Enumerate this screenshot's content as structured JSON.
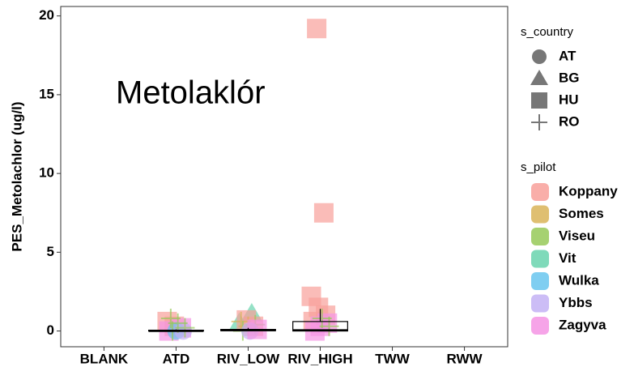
{
  "chart_data": {
    "type": "box",
    "title": "Metolaklór",
    "y_label": "PES_Metolachlor (ug/l)",
    "categories": [
      "BLANK",
      "ATD",
      "RIV_LOW",
      "RIV_HIGH",
      "TWW",
      "RWW"
    ],
    "ylim": [
      -1,
      20.6
    ],
    "yticks": [
      0,
      5,
      10,
      15,
      20
    ],
    "boxes": [
      {
        "category": "ATD",
        "min": 0,
        "q1": 0,
        "median": 0,
        "q3": 0.05,
        "max": 0.1
      },
      {
        "category": "RIV_LOW",
        "min": 0,
        "q1": 0.02,
        "median": 0.05,
        "q3": 0.1,
        "max": 0.2
      },
      {
        "category": "RIV_HIGH",
        "min": 0,
        "q1": 0,
        "median": 0.05,
        "q3": 0.6,
        "max": 1.4
      }
    ],
    "country_legend": {
      "title": "s_country",
      "names": [
        "AT",
        "BG",
        "HU",
        "RO"
      ],
      "shapes": [
        "circle",
        "triangle",
        "square",
        "plus"
      ]
    },
    "pilot_legend": {
      "title": "s_pilot",
      "names": [
        "Koppany",
        "Somes",
        "Viseu",
        "Vit",
        "Wulka",
        "Ybbs",
        "Zagyva"
      ],
      "colors": [
        "#f8a09a",
        "#d9b458",
        "#97c958",
        "#68d4ae",
        "#68c6ee",
        "#c3b1f4",
        "#f594e4"
      ]
    },
    "points": [
      {
        "category": "ATD",
        "value": 0.6,
        "pilot": "Koppany",
        "country": "HU"
      },
      {
        "category": "ATD",
        "value": 0.3,
        "pilot": "Koppany",
        "country": "HU"
      },
      {
        "category": "ATD",
        "value": 0.2,
        "pilot": "Zagyva",
        "country": "HU"
      },
      {
        "category": "ATD",
        "value": 0,
        "pilot": "Zagyva",
        "country": "HU"
      },
      {
        "category": "ATD",
        "value": 0,
        "pilot": "Wulka",
        "country": "AT"
      },
      {
        "category": "ATD",
        "value": 0,
        "pilot": "Ybbs",
        "country": "AT"
      },
      {
        "category": "ATD",
        "value": 0.8,
        "pilot": "Viseu",
        "country": "RO"
      },
      {
        "category": "ATD",
        "value": 0.5,
        "pilot": "Viseu",
        "country": "RO"
      },
      {
        "category": "ATD",
        "value": 0.2,
        "pilot": "Viseu",
        "country": "RO"
      },
      {
        "category": "ATD",
        "value": 0,
        "pilot": "Viseu",
        "country": "RO"
      },
      {
        "category": "RIV_LOW",
        "value": 1.1,
        "pilot": "Vit",
        "country": "BG"
      },
      {
        "category": "RIV_LOW",
        "value": 0.5,
        "pilot": "Vit",
        "country": "BG"
      },
      {
        "category": "RIV_LOW",
        "value": 0.7,
        "pilot": "Koppany",
        "country": "HU"
      },
      {
        "category": "RIV_LOW",
        "value": 0.3,
        "pilot": "Koppany",
        "country": "HU"
      },
      {
        "category": "RIV_LOW",
        "value": 0.6,
        "pilot": "Somes",
        "country": "RO"
      },
      {
        "category": "RIV_LOW",
        "value": 0.3,
        "pilot": "Somes",
        "country": "RO"
      },
      {
        "category": "RIV_LOW",
        "value": 0.4,
        "pilot": "Viseu",
        "country": "RO"
      },
      {
        "category": "RIV_LOW",
        "value": 0,
        "pilot": "Viseu",
        "country": "RO"
      },
      {
        "category": "RIV_LOW",
        "value": 0,
        "pilot": "Ybbs",
        "country": "AT"
      },
      {
        "category": "RIV_LOW",
        "value": 0.1,
        "pilot": "Zagyva",
        "country": "HU"
      },
      {
        "category": "RIV_HIGH",
        "value": 19.2,
        "pilot": "Koppany",
        "country": "HU"
      },
      {
        "category": "RIV_HIGH",
        "value": 7.5,
        "pilot": "Koppany",
        "country": "HU"
      },
      {
        "category": "RIV_HIGH",
        "value": 2.2,
        "pilot": "Koppany",
        "country": "HU"
      },
      {
        "category": "RIV_HIGH",
        "value": 1.5,
        "pilot": "Koppany",
        "country": "HU"
      },
      {
        "category": "RIV_HIGH",
        "value": 1,
        "pilot": "Koppany",
        "country": "HU"
      },
      {
        "category": "RIV_HIGH",
        "value": 0.6,
        "pilot": "Koppany",
        "country": "HU"
      },
      {
        "category": "RIV_HIGH",
        "value": 0.3,
        "pilot": "Zagyva",
        "country": "HU"
      },
      {
        "category": "RIV_HIGH",
        "value": 0.5,
        "pilot": "Zagyva",
        "country": "HU"
      },
      {
        "category": "RIV_HIGH",
        "value": 0,
        "pilot": "Zagyva",
        "country": "HU"
      },
      {
        "category": "RIV_HIGH",
        "value": 0.8,
        "pilot": "Viseu",
        "country": "RO"
      },
      {
        "category": "RIV_HIGH",
        "value": 0.3,
        "pilot": "Viseu",
        "country": "RO"
      }
    ]
  }
}
